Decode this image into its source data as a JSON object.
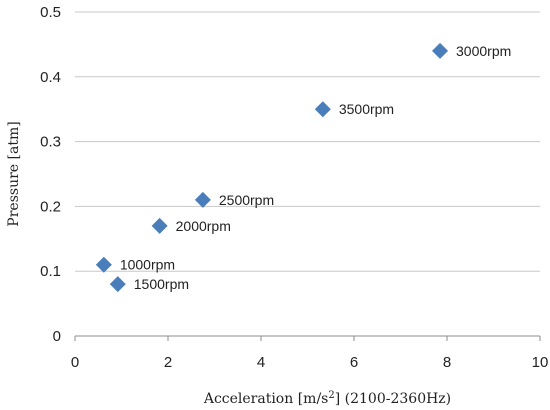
{
  "chart_data": {
    "type": "scatter",
    "title": "",
    "xlabel_text": "Acceleration [m/s",
    "xlabel_sup": "2",
    "xlabel_suffix": "] (2100-2360Hz)",
    "ylabel": "Pressure [atm]",
    "xlim": [
      0,
      10
    ],
    "ylim": [
      0,
      0.5
    ],
    "x_ticks": [
      0,
      2,
      4,
      6,
      8,
      10
    ],
    "y_ticks": [
      0,
      0.1,
      0.2,
      0.3,
      0.4,
      0.5
    ],
    "x_tick_labels": [
      "0",
      "2",
      "4",
      "6",
      "8",
      "10"
    ],
    "y_tick_labels": [
      "0",
      "0.1",
      "0.2",
      "0.3",
      "0.4",
      "0.5"
    ],
    "grid": "horizontal",
    "marker": "diamond",
    "marker_color": "#4a7ebb",
    "points": [
      {
        "x": 0.62,
        "y": 0.11,
        "label": "1000rpm"
      },
      {
        "x": 0.92,
        "y": 0.08,
        "label": "1500rpm"
      },
      {
        "x": 1.82,
        "y": 0.17,
        "label": "2000rpm"
      },
      {
        "x": 2.75,
        "y": 0.21,
        "label": "2500rpm"
      },
      {
        "x": 5.33,
        "y": 0.35,
        "label": "3500rpm"
      },
      {
        "x": 7.85,
        "y": 0.44,
        "label": "3000rpm"
      }
    ]
  }
}
